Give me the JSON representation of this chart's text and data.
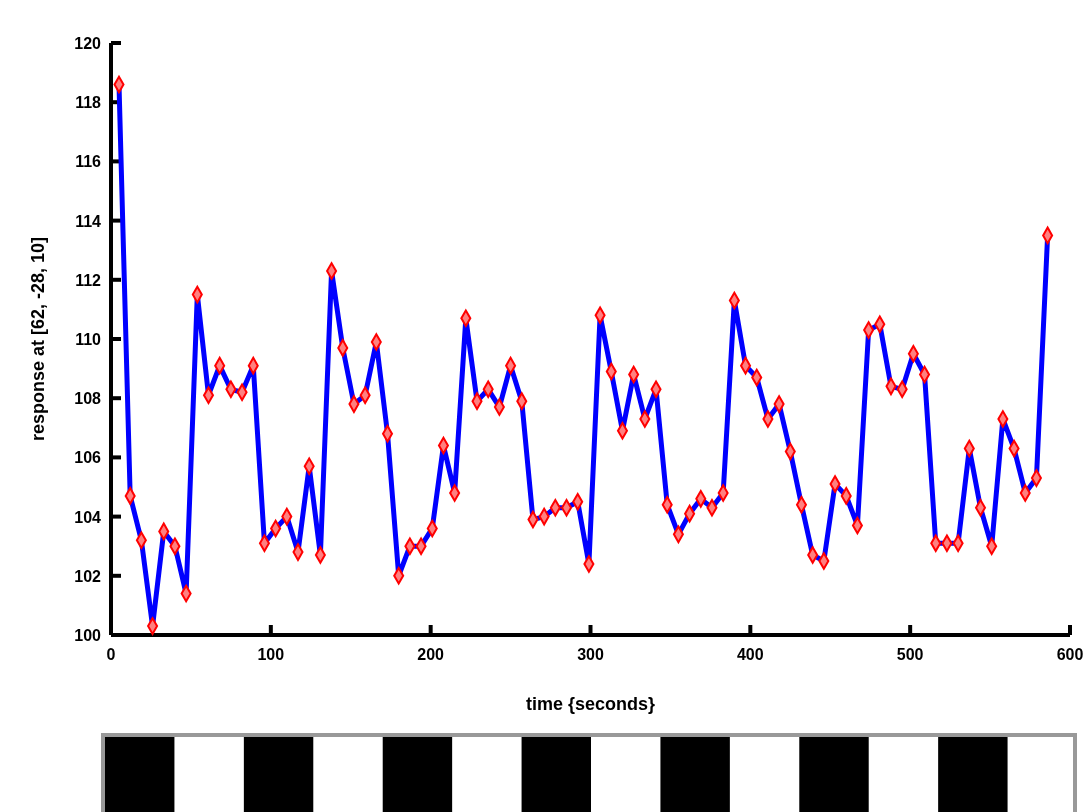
{
  "chart_data": {
    "type": "line",
    "xlabel": "time {seconds}",
    "ylabel": "response at [62, -28, 10]",
    "xlim": [
      0,
      600
    ],
    "xticks": [
      0,
      100,
      200,
      300,
      400,
      500,
      600
    ],
    "ylim": [
      100,
      120
    ],
    "yticks": [
      100,
      102,
      104,
      106,
      108,
      110,
      112,
      114,
      116,
      118,
      120
    ],
    "grid": false,
    "marker": "diamond",
    "line_style": "solid",
    "series": [
      {
        "color": "#0000ff",
        "x": [
          5,
          12,
          19,
          26,
          33,
          40,
          47,
          54,
          61,
          68,
          75,
          82,
          89,
          96,
          103,
          110,
          117,
          124,
          131,
          138,
          145,
          152,
          159,
          166,
          173,
          180,
          187,
          194,
          201,
          208,
          215,
          222,
          229,
          236,
          243,
          250,
          257,
          264,
          271,
          278,
          285,
          292,
          299,
          306,
          313,
          320,
          327,
          334,
          341,
          348,
          355,
          362,
          369,
          376,
          383,
          390,
          397,
          404,
          411,
          418,
          425,
          432,
          439,
          446,
          453,
          460,
          467,
          474,
          481,
          488,
          495,
          502,
          509,
          516,
          523,
          530,
          537,
          544,
          551,
          558,
          565,
          572,
          579,
          586
        ],
        "values": [
          118.6,
          104.7,
          103.2,
          100.3,
          103.5,
          103.0,
          101.4,
          111.5,
          108.1,
          109.1,
          108.3,
          108.2,
          109.1,
          103.1,
          103.6,
          104.0,
          102.8,
          105.7,
          102.7,
          112.3,
          109.7,
          107.8,
          108.1,
          109.9,
          106.8,
          102.0,
          103.0,
          103.0,
          103.6,
          106.4,
          104.8,
          110.7,
          107.9,
          108.3,
          107.7,
          109.1,
          107.9,
          103.9,
          104.0,
          104.3,
          104.3,
          104.5,
          102.4,
          110.8,
          108.9,
          106.9,
          108.8,
          107.3,
          108.3,
          104.4,
          103.4,
          104.1,
          104.6,
          104.3,
          104.8,
          111.3,
          109.1,
          108.7,
          107.3,
          107.8,
          106.2,
          104.4,
          102.7,
          102.5,
          105.1,
          104.7,
          103.7,
          110.3,
          110.5,
          108.4,
          108.3,
          109.5,
          108.8,
          103.1,
          103.1,
          103.1,
          106.3,
          104.3,
          103.0,
          107.3,
          106.3,
          104.8,
          105.3,
          113.5
        ]
      }
    ]
  }
}
